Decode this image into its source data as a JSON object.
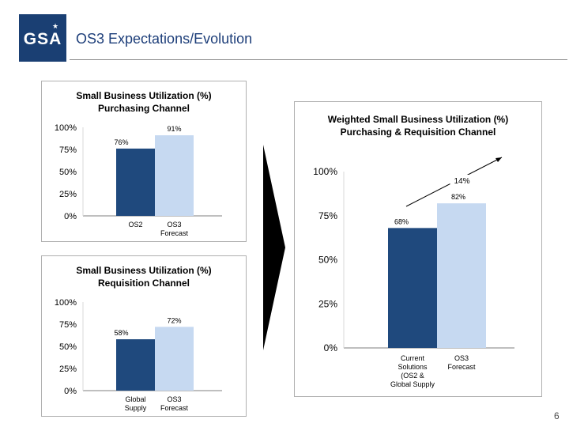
{
  "header": {
    "logo_text": "GSA",
    "title": "OS3 Expectations/Evolution"
  },
  "page_number": "6",
  "colors": {
    "dark_bar": "#1f497d",
    "light_bar": "#c6d9f1",
    "logo": "#1a3f73"
  },
  "chart_data": [
    {
      "type": "bar",
      "title": "Small Business Utilization (%)\nPurchasing Channel",
      "categories": [
        "OS2",
        "OS3\nForecast"
      ],
      "values": [
        76,
        91
      ],
      "value_labels": [
        "76%",
        "91%"
      ],
      "ylim": [
        0,
        100
      ],
      "yticks": [
        "0%",
        "25%",
        "50%",
        "75%",
        "100%"
      ],
      "grid": false
    },
    {
      "type": "bar",
      "title": "Small Business Utilization (%)\nRequisition Channel",
      "categories": [
        "Global\nSupply",
        "OS3\nForecast"
      ],
      "values": [
        58,
        72
      ],
      "value_labels": [
        "58%",
        "72%"
      ],
      "ylim": [
        0,
        100
      ],
      "yticks": [
        "0%",
        "25%",
        "50%",
        "75%",
        "100%"
      ],
      "grid": false
    },
    {
      "type": "bar",
      "title": "Weighted Small Business Utilization (%)\nPurchasing & Requisition Channel",
      "categories": [
        "Current\nSolutions\n(OS2 &\nGlobal Supply",
        "OS3\nForecast"
      ],
      "values": [
        68,
        82
      ],
      "value_labels": [
        "68%",
        "82%"
      ],
      "ylim": [
        0,
        100
      ],
      "yticks": [
        "0%",
        "25%",
        "50%",
        "75%",
        "100%"
      ],
      "grid": false,
      "annotation": "14%"
    }
  ]
}
